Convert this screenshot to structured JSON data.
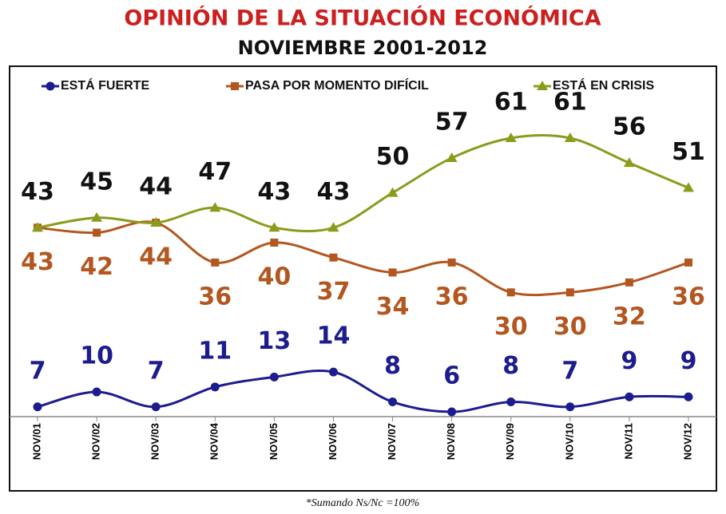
{
  "chart_data": {
    "type": "line",
    "title": "OPINIÓN DE LA SITUACIÓN ECONÓMICA",
    "subtitle": "NOVIEMBRE 2001-2012",
    "footnote": "*Sumando Ns/Nc =100%",
    "categories": [
      "NOV/01",
      "NOV/02",
      "NOV/03",
      "NOV/04",
      "NOV/05",
      "NOV/06",
      "NOV/07",
      "NOV/08",
      "NOV/09",
      "NOV/10",
      "NOV/11",
      "NOV/12"
    ],
    "series": [
      {
        "name": "ESTÁ FUERTE",
        "color": "#1c1c8e",
        "marker": "circle",
        "label_position": "above",
        "values": [
          7,
          10,
          7,
          11,
          13,
          14,
          8,
          6,
          8,
          7,
          9,
          9
        ]
      },
      {
        "name": "PASA POR MOMENTO DIFÍCIL",
        "color": "#b3561f",
        "marker": "square",
        "label_position": "below",
        "values": [
          43,
          42,
          44,
          36,
          40,
          37,
          34,
          36,
          30,
          30,
          32,
          36
        ]
      },
      {
        "name": "ESTÁ EN CRISIS",
        "color": "#8c9b1c",
        "marker": "triangle",
        "label_position": "above",
        "label_color": "#111111",
        "values": [
          43,
          45,
          44,
          47,
          43,
          43,
          50,
          57,
          61,
          61,
          56,
          51
        ]
      }
    ],
    "legend": "top"
  }
}
